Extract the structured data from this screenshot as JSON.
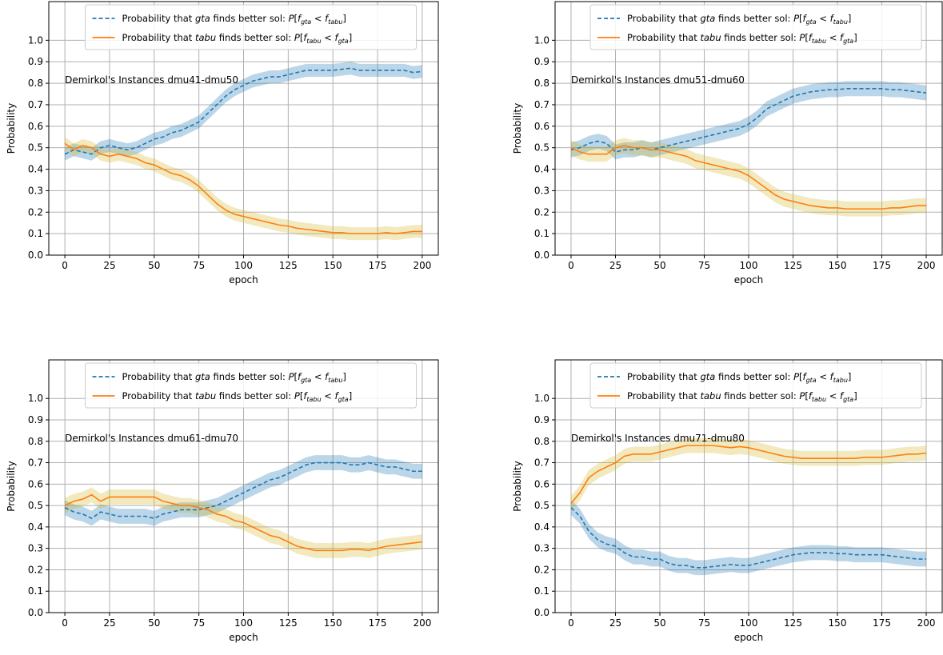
{
  "chart_data": [
    {
      "type": "line",
      "annotation": "Demirkol's Instances dmu41-dmu50",
      "xlabel": "epoch",
      "ylabel": "Probability",
      "xlim": [
        -9,
        209
      ],
      "ylim": [
        0.0,
        1.18
      ],
      "xticks": [
        0,
        25,
        50,
        75,
        100,
        125,
        150,
        175,
        200
      ],
      "yticks": [
        0.0,
        0.1,
        0.2,
        0.3,
        0.4,
        0.5,
        0.6,
        0.7,
        0.8,
        0.9,
        1.0
      ],
      "grid": true,
      "legend_position": "top-center",
      "series": [
        {
          "name": "Probability that gta finds better sol: P[f_gta < f_tabu]",
          "style": "dashed",
          "color": "#1f77b4",
          "band_color": "#1f77b4",
          "x": [
            0,
            5,
            10,
            15,
            20,
            25,
            30,
            35,
            40,
            45,
            50,
            55,
            60,
            65,
            70,
            75,
            80,
            85,
            90,
            95,
            100,
            105,
            110,
            115,
            120,
            125,
            130,
            135,
            140,
            145,
            150,
            155,
            160,
            165,
            170,
            175,
            180,
            185,
            190,
            195,
            200
          ],
          "y": [
            0.47,
            0.49,
            0.48,
            0.47,
            0.5,
            0.51,
            0.5,
            0.49,
            0.5,
            0.52,
            0.54,
            0.55,
            0.57,
            0.58,
            0.6,
            0.62,
            0.66,
            0.7,
            0.74,
            0.77,
            0.79,
            0.81,
            0.82,
            0.83,
            0.83,
            0.84,
            0.85,
            0.86,
            0.86,
            0.86,
            0.86,
            0.865,
            0.87,
            0.86,
            0.86,
            0.86,
            0.86,
            0.86,
            0.86,
            0.85,
            0.855
          ],
          "band": 0.03
        },
        {
          "name": "Probability that tabu finds better sol: P[f_tabu < f_gta]",
          "style": "solid",
          "color": "#ff7f0e",
          "band_color": "#d4b52a",
          "x": [
            0,
            5,
            10,
            15,
            20,
            25,
            30,
            35,
            40,
            45,
            50,
            55,
            60,
            65,
            70,
            75,
            80,
            85,
            90,
            95,
            100,
            105,
            110,
            115,
            120,
            125,
            130,
            135,
            140,
            145,
            150,
            155,
            160,
            165,
            170,
            175,
            180,
            185,
            190,
            195,
            200
          ],
          "y": [
            0.52,
            0.49,
            0.51,
            0.5,
            0.47,
            0.46,
            0.47,
            0.46,
            0.45,
            0.43,
            0.42,
            0.4,
            0.38,
            0.37,
            0.35,
            0.32,
            0.28,
            0.24,
            0.21,
            0.19,
            0.18,
            0.17,
            0.16,
            0.15,
            0.14,
            0.135,
            0.125,
            0.12,
            0.115,
            0.11,
            0.105,
            0.105,
            0.1,
            0.1,
            0.1,
            0.1,
            0.105,
            0.1,
            0.105,
            0.11,
            0.11
          ],
          "band": 0.03
        }
      ]
    },
    {
      "type": "line",
      "annotation": "Demirkol's Instances dmu51-dmu60",
      "xlabel": "epoch",
      "ylabel": "Probability",
      "xlim": [
        -9,
        209
      ],
      "ylim": [
        0.0,
        1.18
      ],
      "xticks": [
        0,
        25,
        50,
        75,
        100,
        125,
        150,
        175,
        200
      ],
      "yticks": [
        0.0,
        0.1,
        0.2,
        0.3,
        0.4,
        0.5,
        0.6,
        0.7,
        0.8,
        0.9,
        1.0
      ],
      "grid": true,
      "legend_position": "top-center",
      "series": [
        {
          "name": "Probability that gta finds better sol: P[f_gta < f_tabu]",
          "style": "dashed",
          "color": "#1f77b4",
          "band_color": "#1f77b4",
          "x": [
            0,
            5,
            10,
            15,
            20,
            25,
            30,
            35,
            40,
            45,
            50,
            55,
            60,
            65,
            70,
            75,
            80,
            85,
            90,
            95,
            100,
            105,
            110,
            115,
            120,
            125,
            130,
            135,
            140,
            145,
            150,
            155,
            160,
            165,
            170,
            175,
            180,
            185,
            190,
            195,
            200
          ],
          "y": [
            0.49,
            0.5,
            0.52,
            0.53,
            0.52,
            0.48,
            0.49,
            0.49,
            0.5,
            0.49,
            0.5,
            0.51,
            0.52,
            0.53,
            0.54,
            0.55,
            0.56,
            0.57,
            0.58,
            0.59,
            0.61,
            0.64,
            0.68,
            0.7,
            0.72,
            0.74,
            0.75,
            0.76,
            0.765,
            0.77,
            0.77,
            0.775,
            0.775,
            0.775,
            0.775,
            0.775,
            0.77,
            0.77,
            0.765,
            0.76,
            0.755
          ],
          "band": 0.035
        },
        {
          "name": "Probability that tabu finds better sol: P[f_tabu < f_gta]",
          "style": "solid",
          "color": "#ff7f0e",
          "band_color": "#d4b52a",
          "x": [
            0,
            5,
            10,
            15,
            20,
            25,
            30,
            35,
            40,
            45,
            50,
            55,
            60,
            65,
            70,
            75,
            80,
            85,
            90,
            95,
            100,
            105,
            110,
            115,
            120,
            125,
            130,
            135,
            140,
            145,
            150,
            155,
            160,
            165,
            170,
            175,
            180,
            185,
            190,
            195,
            200
          ],
          "y": [
            0.5,
            0.48,
            0.47,
            0.47,
            0.47,
            0.5,
            0.51,
            0.5,
            0.5,
            0.49,
            0.49,
            0.48,
            0.47,
            0.46,
            0.44,
            0.43,
            0.42,
            0.41,
            0.4,
            0.39,
            0.37,
            0.34,
            0.31,
            0.28,
            0.26,
            0.25,
            0.24,
            0.23,
            0.225,
            0.22,
            0.22,
            0.215,
            0.215,
            0.215,
            0.215,
            0.215,
            0.22,
            0.22,
            0.225,
            0.23,
            0.23
          ],
          "band": 0.035
        }
      ]
    },
    {
      "type": "line",
      "annotation": "Demirkol's Instances dmu61-dmu70",
      "xlabel": "epoch",
      "ylabel": "Probability",
      "xlim": [
        -9,
        209
      ],
      "ylim": [
        0.0,
        1.18
      ],
      "xticks": [
        0,
        25,
        50,
        75,
        100,
        125,
        150,
        175,
        200
      ],
      "yticks": [
        0.0,
        0.1,
        0.2,
        0.3,
        0.4,
        0.5,
        0.6,
        0.7,
        0.8,
        0.9,
        1.0
      ],
      "grid": true,
      "legend_position": "top-center",
      "series": [
        {
          "name": "Probability that gta finds better sol: P[f_gta < f_tabu]",
          "style": "dashed",
          "color": "#1f77b4",
          "band_color": "#1f77b4",
          "x": [
            0,
            5,
            10,
            15,
            20,
            25,
            30,
            35,
            40,
            45,
            50,
            55,
            60,
            65,
            70,
            75,
            80,
            85,
            90,
            95,
            100,
            105,
            110,
            115,
            120,
            125,
            130,
            135,
            140,
            145,
            150,
            155,
            160,
            165,
            170,
            175,
            180,
            185,
            190,
            195,
            200
          ],
          "y": [
            0.49,
            0.47,
            0.46,
            0.44,
            0.47,
            0.46,
            0.45,
            0.45,
            0.45,
            0.45,
            0.44,
            0.46,
            0.47,
            0.48,
            0.48,
            0.48,
            0.49,
            0.5,
            0.52,
            0.54,
            0.56,
            0.58,
            0.6,
            0.62,
            0.63,
            0.65,
            0.67,
            0.69,
            0.7,
            0.7,
            0.7,
            0.7,
            0.69,
            0.69,
            0.7,
            0.69,
            0.68,
            0.68,
            0.67,
            0.66,
            0.66
          ],
          "band": 0.035
        },
        {
          "name": "Probability that tabu finds better sol: P[f_tabu < f_gta]",
          "style": "solid",
          "color": "#ff7f0e",
          "band_color": "#d4b52a",
          "x": [
            0,
            5,
            10,
            15,
            20,
            25,
            30,
            35,
            40,
            45,
            50,
            55,
            60,
            65,
            70,
            75,
            80,
            85,
            90,
            95,
            100,
            105,
            110,
            115,
            120,
            125,
            130,
            135,
            140,
            145,
            150,
            155,
            160,
            165,
            170,
            175,
            180,
            185,
            190,
            195,
            200
          ],
          "y": [
            0.5,
            0.52,
            0.53,
            0.55,
            0.52,
            0.54,
            0.54,
            0.54,
            0.54,
            0.54,
            0.54,
            0.52,
            0.51,
            0.5,
            0.5,
            0.49,
            0.48,
            0.46,
            0.45,
            0.43,
            0.42,
            0.4,
            0.38,
            0.36,
            0.35,
            0.33,
            0.31,
            0.3,
            0.29,
            0.29,
            0.29,
            0.29,
            0.295,
            0.295,
            0.29,
            0.3,
            0.31,
            0.315,
            0.32,
            0.325,
            0.33
          ],
          "band": 0.035
        }
      ]
    },
    {
      "type": "line",
      "annotation": "Demirkol's Instances dmu71-dmu80",
      "xlabel": "epoch",
      "ylabel": "Probability",
      "xlim": [
        -9,
        209
      ],
      "ylim": [
        0.0,
        1.18
      ],
      "xticks": [
        0,
        25,
        50,
        75,
        100,
        125,
        150,
        175,
        200
      ],
      "yticks": [
        0.0,
        0.1,
        0.2,
        0.3,
        0.4,
        0.5,
        0.6,
        0.7,
        0.8,
        0.9,
        1.0
      ],
      "grid": true,
      "legend_position": "top-center",
      "series": [
        {
          "name": "Probability that gta finds better sol: P[f_gta < f_tabu]",
          "style": "dashed",
          "color": "#1f77b4",
          "band_color": "#1f77b4",
          "x": [
            0,
            5,
            10,
            15,
            20,
            25,
            30,
            35,
            40,
            45,
            50,
            55,
            60,
            65,
            70,
            75,
            80,
            85,
            90,
            95,
            100,
            105,
            110,
            115,
            120,
            125,
            130,
            135,
            140,
            145,
            150,
            155,
            160,
            165,
            170,
            175,
            180,
            185,
            190,
            195,
            200
          ],
          "y": [
            0.49,
            0.45,
            0.38,
            0.34,
            0.32,
            0.31,
            0.28,
            0.26,
            0.26,
            0.25,
            0.25,
            0.23,
            0.22,
            0.22,
            0.21,
            0.21,
            0.215,
            0.22,
            0.225,
            0.22,
            0.22,
            0.23,
            0.24,
            0.25,
            0.26,
            0.27,
            0.275,
            0.28,
            0.28,
            0.28,
            0.275,
            0.275,
            0.27,
            0.27,
            0.27,
            0.27,
            0.265,
            0.26,
            0.255,
            0.25,
            0.25
          ],
          "band": 0.035
        },
        {
          "name": "Probability that tabu finds better sol: P[f_tabu < f_gta]",
          "style": "solid",
          "color": "#ff7f0e",
          "band_color": "#d4b52a",
          "x": [
            0,
            5,
            10,
            15,
            20,
            25,
            30,
            35,
            40,
            45,
            50,
            55,
            60,
            65,
            70,
            75,
            80,
            85,
            90,
            95,
            100,
            105,
            110,
            115,
            120,
            125,
            130,
            135,
            140,
            145,
            150,
            155,
            160,
            165,
            170,
            175,
            180,
            185,
            190,
            195,
            200
          ],
          "y": [
            0.51,
            0.56,
            0.63,
            0.66,
            0.68,
            0.7,
            0.73,
            0.74,
            0.74,
            0.74,
            0.75,
            0.76,
            0.77,
            0.78,
            0.78,
            0.78,
            0.78,
            0.775,
            0.77,
            0.775,
            0.77,
            0.76,
            0.75,
            0.74,
            0.73,
            0.725,
            0.72,
            0.72,
            0.72,
            0.72,
            0.72,
            0.72,
            0.72,
            0.725,
            0.725,
            0.725,
            0.73,
            0.735,
            0.74,
            0.74,
            0.745
          ],
          "band": 0.035
        }
      ]
    }
  ]
}
